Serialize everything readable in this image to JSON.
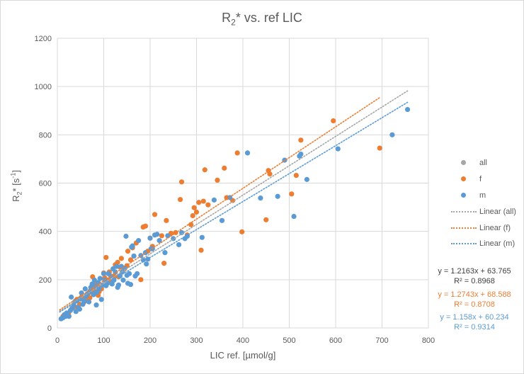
{
  "chart_data": {
    "type": "scatter",
    "title_main": "R",
    "title_sub": "2",
    "title_rest": "* vs. ref LIC",
    "ylabel_main": "R",
    "ylabel_sub": "2",
    "ylabel_mid": "* [s",
    "ylabel_sup": "-1",
    "ylabel_end": "]",
    "xlabel": "LIC ref. [µmol/g]",
    "xlim": [
      0,
      800
    ],
    "ylim": [
      0,
      1200
    ],
    "xticks": [
      0,
      100,
      200,
      300,
      400,
      500,
      600,
      700,
      800
    ],
    "yticks": [
      0,
      200,
      400,
      600,
      800,
      1000,
      1200
    ],
    "grid": true,
    "legend_position": "right",
    "series": [
      {
        "name": "all",
        "color": "#a5a5a5",
        "points": []
      },
      {
        "name": "f",
        "color": "#ed7d31",
        "points": [
          [
            12,
            48
          ],
          [
            24,
            58
          ],
          [
            30,
            78
          ],
          [
            38,
            88
          ],
          [
            42,
            118
          ],
          [
            48,
            98
          ],
          [
            52,
            128
          ],
          [
            58,
            108
          ],
          [
            62,
            122
          ],
          [
            65,
            140
          ],
          [
            70,
            125
          ],
          [
            72,
            148
          ],
          [
            75,
            168
          ],
          [
            76,
            212
          ],
          [
            78,
            158
          ],
          [
            80,
            145
          ],
          [
            82,
            188
          ],
          [
            85,
            178
          ],
          [
            88,
            135
          ],
          [
            90,
            150
          ],
          [
            92,
            168
          ],
          [
            95,
            162
          ],
          [
            98,
            178
          ],
          [
            100,
            228
          ],
          [
            102,
            208
          ],
          [
            105,
            292
          ],
          [
            110,
            198
          ],
          [
            112,
            232
          ],
          [
            118,
            192
          ],
          [
            122,
            215
          ],
          [
            125,
            262
          ],
          [
            130,
            272
          ],
          [
            132,
            212
          ],
          [
            135,
            252
          ],
          [
            138,
            288
          ],
          [
            140,
            232
          ],
          [
            145,
            245
          ],
          [
            150,
            258
          ],
          [
            152,
            318
          ],
          [
            158,
            282
          ],
          [
            162,
            332
          ],
          [
            165,
            298
          ],
          [
            170,
            352
          ],
          [
            180,
            200
          ],
          [
            185,
            418
          ],
          [
            190,
            422
          ],
          [
            195,
            318
          ],
          [
            200,
            372
          ],
          [
            205,
            338
          ],
          [
            210,
            470
          ],
          [
            225,
            382
          ],
          [
            230,
            268
          ],
          [
            235,
            445
          ],
          [
            245,
            392
          ],
          [
            255,
            395
          ],
          [
            265,
            532
          ],
          [
            268,
            605
          ],
          [
            280,
            385
          ],
          [
            288,
            428
          ],
          [
            292,
            465
          ],
          [
            295,
            498
          ],
          [
            300,
            480
          ],
          [
            305,
            520
          ],
          [
            310,
            322
          ],
          [
            315,
            525
          ],
          [
            318,
            655
          ],
          [
            325,
            510
          ],
          [
            345,
            612
          ],
          [
            360,
            662
          ],
          [
            365,
            540
          ],
          [
            378,
            528
          ],
          [
            388,
            725
          ],
          [
            398,
            398
          ],
          [
            450,
            448
          ],
          [
            455,
            652
          ],
          [
            458,
            638
          ],
          [
            505,
            555
          ],
          [
            515,
            632
          ],
          [
            525,
            778
          ],
          [
            595,
            858
          ],
          [
            695,
            745
          ]
        ]
      },
      {
        "name": "m",
        "color": "#5b9bd5",
        "points": [
          [
            8,
            38
          ],
          [
            12,
            42
          ],
          [
            15,
            55
          ],
          [
            18,
            48
          ],
          [
            20,
            62
          ],
          [
            22,
            50
          ],
          [
            25,
            48
          ],
          [
            28,
            72
          ],
          [
            30,
            128
          ],
          [
            32,
            82
          ],
          [
            35,
            95
          ],
          [
            38,
            110
          ],
          [
            40,
            68
          ],
          [
            42,
            112
          ],
          [
            45,
            85
          ],
          [
            48,
            78
          ],
          [
            50,
            120
          ],
          [
            52,
            145
          ],
          [
            55,
            98
          ],
          [
            58,
            112
          ],
          [
            60,
            162
          ],
          [
            62,
            132
          ],
          [
            65,
            142
          ],
          [
            68,
            108
          ],
          [
            70,
            152
          ],
          [
            72,
            168
          ],
          [
            75,
            182
          ],
          [
            78,
            138
          ],
          [
            80,
            198
          ],
          [
            82,
            172
          ],
          [
            84,
            95
          ],
          [
            85,
            148
          ],
          [
            88,
            188
          ],
          [
            90,
            162
          ],
          [
            92,
            205
          ],
          [
            95,
            118
          ],
          [
            98,
            178
          ],
          [
            100,
            225
          ],
          [
            102,
            198
          ],
          [
            105,
            175
          ],
          [
            108,
            185
          ],
          [
            110,
            225
          ],
          [
            115,
            215
          ],
          [
            118,
            182
          ],
          [
            120,
            245
          ],
          [
            122,
            198
          ],
          [
            125,
            232
          ],
          [
            128,
            255
          ],
          [
            130,
            168
          ],
          [
            132,
            178
          ],
          [
            135,
            215
          ],
          [
            138,
            255
          ],
          [
            140,
            232
          ],
          [
            142,
            198
          ],
          [
            145,
            248
          ],
          [
            148,
            380
          ],
          [
            150,
            218
          ],
          [
            152,
            185
          ],
          [
            155,
            225
          ],
          [
            158,
            180
          ],
          [
            160,
            335
          ],
          [
            162,
            340
          ],
          [
            165,
            298
          ],
          [
            168,
            215
          ],
          [
            172,
            225
          ],
          [
            175,
            362
          ],
          [
            180,
            300
          ],
          [
            185,
            282
          ],
          [
            190,
            312
          ],
          [
            192,
            265
          ],
          [
            195,
            285
          ],
          [
            200,
            372
          ],
          [
            202,
            328
          ],
          [
            205,
            328
          ],
          [
            210,
            385
          ],
          [
            215,
            388
          ],
          [
            220,
            362
          ],
          [
            232,
            312
          ],
          [
            238,
            382
          ],
          [
            250,
            370
          ],
          [
            262,
            345
          ],
          [
            268,
            395
          ],
          [
            275,
            370
          ],
          [
            280,
            380
          ],
          [
            312,
            375
          ],
          [
            338,
            530
          ],
          [
            355,
            445
          ],
          [
            372,
            540
          ],
          [
            410,
            725
          ],
          [
            438,
            538
          ],
          [
            475,
            545
          ],
          [
            490,
            695
          ],
          [
            510,
            462
          ],
          [
            522,
            712
          ],
          [
            525,
            720
          ],
          [
            538,
            615
          ],
          [
            605,
            742
          ],
          [
            722,
            800
          ],
          [
            755,
            905
          ]
        ]
      }
    ],
    "trendlines": [
      {
        "name": "Linear (all)",
        "color": "#a5a5a5",
        "slope": 1.2163,
        "intercept": 63.765,
        "x_range": [
          5,
          755
        ],
        "equation": "y = 1.2163x + 63.765",
        "r2": "R² = 0.8968"
      },
      {
        "name": "Linear (f)",
        "color": "#ed7d31",
        "slope": 1.2743,
        "intercept": 68.588,
        "x_range": [
          5,
          695
        ],
        "equation": "y = 1.2743x + 68.588",
        "r2": "R² = 0.8708"
      },
      {
        "name": "Linear (m)",
        "color": "#5b9bd5",
        "slope": 1.158,
        "intercept": 60.234,
        "x_range": [
          5,
          755
        ],
        "equation": "y = 1.158x + 60.234",
        "r2": "R² = 0.9314"
      }
    ]
  },
  "legend": {
    "items": [
      {
        "label": "all",
        "kind": "dot",
        "color": "#a5a5a5"
      },
      {
        "label": "f",
        "kind": "dot",
        "color": "#ed7d31"
      },
      {
        "label": "m",
        "kind": "dot",
        "color": "#5b9bd5"
      },
      {
        "label": "Linear (all)",
        "kind": "line",
        "color": "#a5a5a5"
      },
      {
        "label": "Linear (f)",
        "kind": "line",
        "color": "#ed7d31"
      },
      {
        "label": "Linear (m)",
        "kind": "line",
        "color": "#5b9bd5"
      }
    ]
  },
  "colors": {
    "axis_text": "#595959",
    "gridline": "#d9d9d9",
    "eq_all": "#404040"
  }
}
